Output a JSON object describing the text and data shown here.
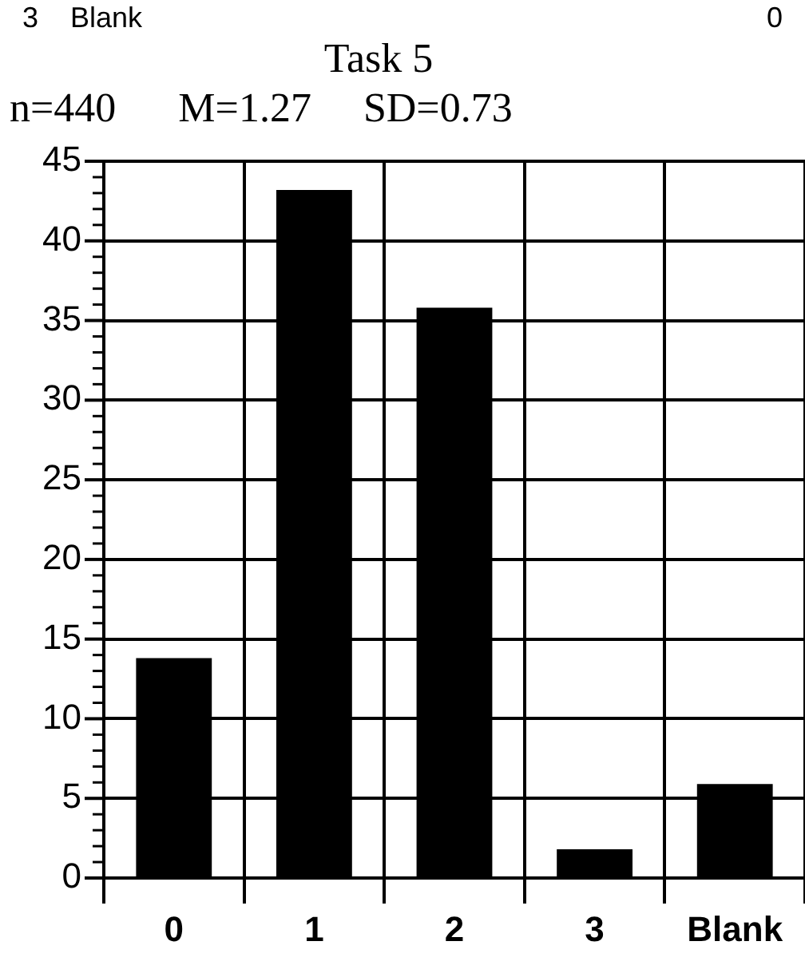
{
  "chart_data": {
    "type": "bar",
    "title": "Task 5",
    "subtitle": "n=440      M=1.27     SD=0.73",
    "annotations": [
      "3    Blank",
      "0"
    ],
    "categories": [
      "0",
      "1",
      "2",
      "3",
      "Blank"
    ],
    "values": [
      13.8,
      43.2,
      35.8,
      1.8,
      5.9
    ],
    "color": "#000000",
    "ylim": [
      0,
      45
    ],
    "yticks": [
      0,
      {
        "value": 1,
        "label": null
      },
      {
        "value": 2,
        "label": null
      },
      {
        "value": 3,
        "label": null
      },
      {
        "value": 4,
        "label": null
      },
      5,
      {
        "value": 6,
        "label": null
      },
      {
        "value": 7,
        "label": null
      },
      {
        "value": 8,
        "label": null
      },
      {
        "value": 9,
        "label": null
      },
      10,
      {
        "value": 11,
        "label": null
      },
      {
        "value": 12,
        "label": null
      },
      {
        "value": 13,
        "label": null
      },
      {
        "value": 14,
        "label": null
      },
      15,
      {
        "value": 16,
        "label": null
      },
      {
        "value": 17,
        "label": null
      },
      {
        "value": 18,
        "label": null
      },
      {
        "value": 19,
        "label": null
      },
      20,
      {
        "value": 21,
        "label": null
      },
      {
        "value": 22,
        "label": null
      },
      {
        "value": 23,
        "label": null
      },
      {
        "value": 24,
        "label": null
      },
      25,
      {
        "value": 26,
        "label": null
      },
      {
        "value": 27,
        "label": null
      },
      {
        "value": 28,
        "label": null
      },
      {
        "value": 29,
        "label": null
      },
      30,
      {
        "value": 31,
        "label": null
      },
      {
        "value": 32,
        "label": null
      },
      {
        "value": 33,
        "label": null
      },
      {
        "value": 34,
        "label": null
      },
      35,
      {
        "value": 36,
        "label": null
      },
      {
        "value": 37,
        "label": null
      },
      {
        "value": 38,
        "label": null
      },
      {
        "value": 39,
        "label": null
      },
      40,
      {
        "value": 41,
        "label": null
      },
      {
        "value": 42,
        "label": null
      },
      {
        "value": 43,
        "label": null
      },
      {
        "value": 44,
        "label": null
      },
      45
    ],
    "grid": true
  }
}
